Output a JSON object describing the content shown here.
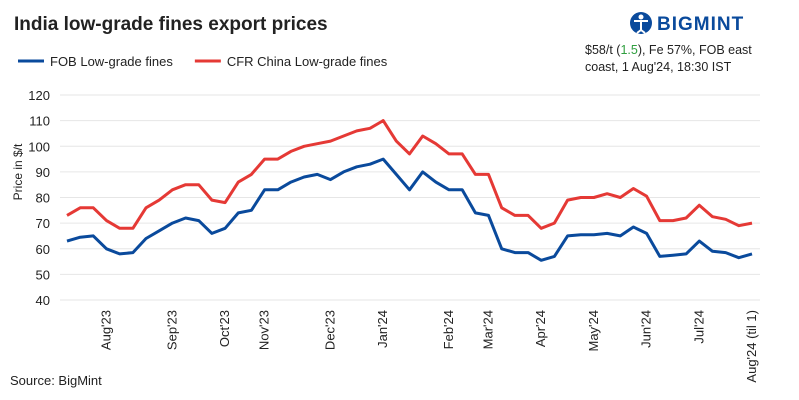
{
  "chart_data": {
    "type": "line",
    "title": "India low-grade fines export prices",
    "brand": "BIGMINT",
    "note_parts": [
      "$58/t (",
      "1.5",
      "), Fe 57%, FOB east coast, 1 Aug'24, 18:30 IST"
    ],
    "note_highlight_color": "#2e9e3e",
    "source": "Source: BigMint",
    "y_label": "Price in $/t",
    "categories": [
      null,
      null,
      null,
      "Aug'23",
      null,
      null,
      null,
      null,
      "Sep'23",
      null,
      null,
      null,
      "Oct'23",
      null,
      null,
      "Nov'23",
      null,
      null,
      null,
      null,
      "Dec'23",
      null,
      null,
      null,
      "Jan'24",
      null,
      null,
      null,
      null,
      "Feb'24",
      null,
      null,
      "Mar'24",
      null,
      null,
      null,
      "Apr'24",
      null,
      null,
      null,
      "May'24",
      null,
      null,
      null,
      "Jun'24",
      null,
      null,
      null,
      "Jul'24",
      null,
      null,
      null,
      "Aug'24 (til 1)"
    ],
    "series": [
      {
        "name": "FOB Low-grade fines",
        "color": "#0a4a9c",
        "values": [
          63,
          64.5,
          65,
          60,
          58,
          58.5,
          64,
          67,
          70,
          72,
          71,
          66,
          68,
          74,
          75,
          83,
          83,
          86,
          88,
          89,
          87,
          90,
          92,
          93,
          95,
          89,
          83,
          90,
          86,
          83,
          83,
          74,
          73,
          60,
          58.5,
          58.5,
          55.5,
          57,
          65,
          65.5,
          65.5,
          66,
          65,
          68.5,
          66,
          57,
          57.5,
          58,
          63,
          59,
          58.5,
          56.5,
          58
        ]
      },
      {
        "name": "CFR China Low-grade fines",
        "color": "#e53935",
        "values": [
          73,
          76,
          76,
          71,
          68,
          68,
          76,
          79,
          83,
          85,
          85,
          79,
          78,
          86,
          89,
          95,
          95,
          98,
          100,
          101,
          102,
          104,
          106,
          107,
          110,
          102,
          97,
          104,
          101,
          97,
          97,
          89,
          89,
          76,
          73,
          73,
          68,
          70,
          79,
          80,
          80,
          81.5,
          80,
          83.5,
          80.5,
          71,
          71,
          72,
          77,
          72.5,
          71.5,
          69,
          70
        ]
      }
    ],
    "ylim": [
      40,
      120
    ],
    "yticks": [
      40,
      50,
      60,
      70,
      80,
      90,
      100,
      110,
      120
    ],
    "grid": true
  }
}
